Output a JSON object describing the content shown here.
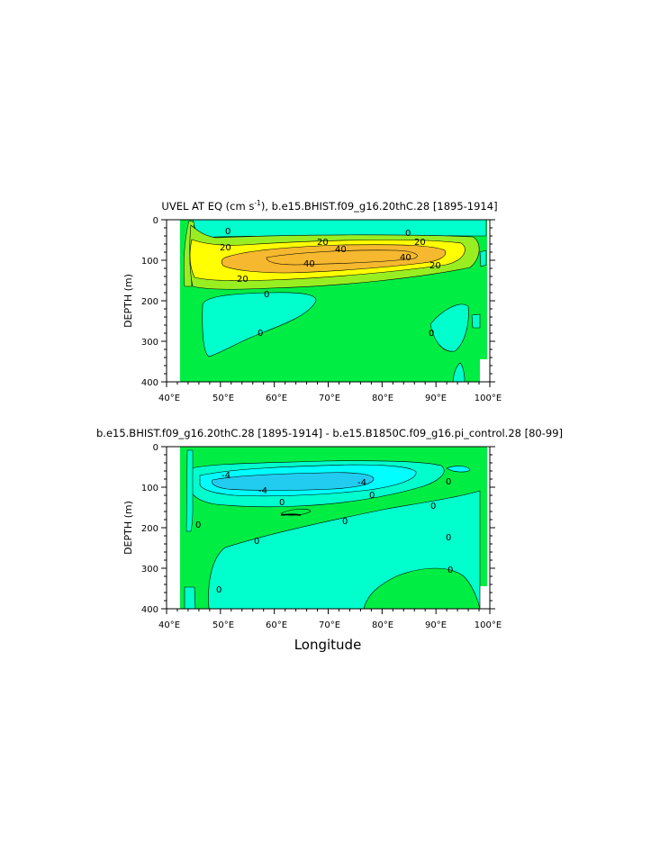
{
  "chart_data": [
    {
      "type": "heatmap",
      "title": "UVEL AT EQ (cm s",
      "title_sup": "-1",
      "title_rest": "), b.e15.BHIST.f09_g16.20thC.28 [1895-1914]",
      "xlabel": "",
      "ylabel": "DEPTH (m)",
      "xlim": [
        40,
        100
      ],
      "ylim": [
        0,
        400
      ],
      "x_tick_labels": [
        "40°E",
        "50°E",
        "60°E",
        "70°E",
        "80°E",
        "90°E",
        "100°E"
      ],
      "y_tick_labels": [
        "0",
        "100",
        "200",
        "300",
        "400"
      ],
      "contour_labels": [
        "0",
        "0",
        "20",
        "20",
        "40",
        "40",
        "40",
        "20",
        "20",
        "20",
        "0",
        "0",
        "0"
      ],
      "colors": {
        "background": "#00ee44",
        "negative": "#00ffcc",
        "band20": "#ffff00",
        "band40": "#f5b82e",
        "edge": "#99ee22",
        "land": "#ffffff"
      }
    },
    {
      "type": "heatmap",
      "title": "b.e15.BHIST.f09_g16.20thC.28 [1895-1914] - b.e15.B1850C.f09_g16.pi_control.28 [80-99]",
      "xlabel": "Longitude",
      "ylabel": "DEPTH (m)",
      "xlim": [
        40,
        100
      ],
      "ylim": [
        0,
        400
      ],
      "x_tick_labels": [
        "40°E",
        "50°E",
        "60°E",
        "70°E",
        "80°E",
        "90°E",
        "100°E"
      ],
      "y_tick_labels": [
        "0",
        "100",
        "200",
        "300",
        "400"
      ],
      "contour_labels": [
        "-4",
        "-4",
        "-4",
        "0",
        "0",
        "0",
        "0",
        "0",
        "0",
        "0",
        "0",
        "0",
        "0"
      ],
      "colors": {
        "background": "#00ee44",
        "negative": "#00ffcc",
        "band_neg4": "#00ffff",
        "strong_neg": "#22ccf0",
        "land": "#ffffff"
      }
    }
  ]
}
